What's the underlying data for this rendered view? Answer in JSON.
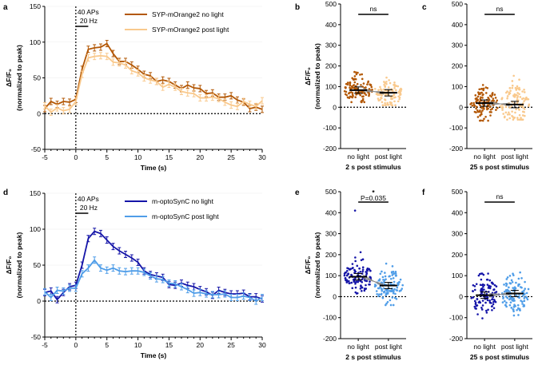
{
  "panel_labels": [
    "a",
    "b",
    "c",
    "d",
    "e",
    "f"
  ],
  "chart_data": [
    {
      "panel": "a",
      "type": "line",
      "xlabel": "Time (s)",
      "ylabel_line1": "ΔF/F₀",
      "ylabel_line2": "(normalized to peak)",
      "xlim": [
        -5,
        30
      ],
      "ylim": [
        -50,
        150
      ],
      "xticks": [
        -5,
        0,
        5,
        10,
        15,
        20,
        25,
        30
      ],
      "yticks": [
        -50,
        0,
        50,
        100,
        150
      ],
      "annotation_line1": "40 APs",
      "annotation_line2": "20 Hz",
      "x": [
        -5,
        -4,
        -3,
        -2,
        -1,
        0,
        1,
        2,
        3,
        4,
        5,
        6,
        7,
        8,
        9,
        10,
        11,
        12,
        13,
        14,
        15,
        16,
        17,
        18,
        19,
        20,
        21,
        22,
        23,
        24,
        25,
        26,
        27,
        28,
        29,
        30
      ],
      "series": [
        {
          "name": "SYP-mOrange2 no light",
          "color": "#b35806",
          "values": [
            7,
            17,
            13,
            17,
            16,
            20,
            62,
            90,
            92,
            93,
            98,
            84,
            73,
            73,
            68,
            62,
            55,
            53,
            45,
            47,
            45,
            40,
            35,
            40,
            36,
            35,
            28,
            29,
            23,
            23,
            25,
            19,
            16,
            7,
            9,
            6
          ]
        },
        {
          "name": "SYP-mOrange2 post light",
          "color": "#f9c98d",
          "values": [
            11,
            2,
            8,
            4,
            6,
            17,
            55,
            78,
            80,
            81,
            80,
            72,
            71,
            68,
            60,
            57,
            50,
            47,
            45,
            37,
            41,
            37,
            31,
            29,
            28,
            22,
            22,
            23,
            21,
            16,
            12,
            10,
            17,
            13,
            10,
            18
          ]
        }
      ]
    },
    {
      "panel": "b",
      "type": "scatter",
      "ylabel_line1": "ΔF/F₀",
      "ylabel_line2": "(normalized to peak)",
      "xlabel": "2 s post stimulus",
      "categories": [
        "no light",
        "post light"
      ],
      "ylim": [
        -200,
        500
      ],
      "yticks": [
        -200,
        -100,
        0,
        100,
        200,
        300,
        400,
        500
      ],
      "colors": [
        "#b35806",
        "#f9c98d"
      ],
      "means": [
        83,
        70
      ],
      "spread": [
        [
          25,
          230
        ],
        [
          10,
          210
        ]
      ],
      "significance": "ns"
    },
    {
      "panel": "c",
      "type": "scatter",
      "ylabel_line1": "",
      "ylabel_line2": "",
      "xlabel": "25 s post stimulus",
      "categories": [
        "no light",
        "post light"
      ],
      "ylim": [
        -200,
        500
      ],
      "yticks": [
        -200,
        -100,
        0,
        100,
        200,
        300,
        400,
        500
      ],
      "colors": [
        "#b35806",
        "#f9c98d"
      ],
      "means": [
        20,
        13
      ],
      "spread": [
        [
          -65,
          155
        ],
        [
          -60,
          260
        ]
      ],
      "significance": "ns"
    },
    {
      "panel": "d",
      "type": "line",
      "xlabel": "Time (s)",
      "ylabel_line1": "ΔF/F₀",
      "ylabel_line2": "(normalized to peak)",
      "xlim": [
        -5,
        30
      ],
      "ylim": [
        -50,
        150
      ],
      "xticks": [
        -5,
        0,
        5,
        10,
        15,
        20,
        25,
        30
      ],
      "yticks": [
        -50,
        0,
        50,
        100,
        150
      ],
      "annotation_line1": "40 APs",
      "annotation_line2": "20 Hz",
      "x": [
        -5,
        -4,
        -3,
        -2,
        -1,
        0,
        1,
        2,
        3,
        4,
        5,
        6,
        7,
        8,
        9,
        10,
        11,
        12,
        13,
        14,
        15,
        16,
        17,
        18,
        19,
        20,
        21,
        22,
        23,
        24,
        25,
        26,
        27,
        28,
        29,
        30
      ],
      "series": [
        {
          "name": "m-optoSynC no light",
          "color": "#1515a8",
          "values": [
            12,
            14,
            2,
            12,
            20,
            22,
            50,
            87,
            97,
            94,
            85,
            76,
            70,
            65,
            60,
            54,
            42,
            37,
            35,
            33,
            23,
            22,
            25,
            22,
            20,
            16,
            13,
            8,
            15,
            12,
            10,
            10,
            11,
            6,
            6,
            3
          ]
        },
        {
          "name": "m-optoSynC post light",
          "color": "#4f9de8",
          "values": [
            13,
            5,
            15,
            14,
            18,
            18,
            38,
            46,
            57,
            46,
            43,
            46,
            42,
            41,
            42,
            42,
            40,
            35,
            31,
            30,
            25,
            24,
            20,
            16,
            11,
            12,
            10,
            9,
            9,
            10,
            5,
            5,
            7,
            5,
            0,
            5
          ]
        }
      ]
    },
    {
      "panel": "e",
      "type": "scatter",
      "ylabel_line1": "ΔF/F₀",
      "ylabel_line2": "(normalized to peak)",
      "xlabel": "2 s post stimulus",
      "categories": [
        "no light",
        "post light"
      ],
      "ylim": [
        -200,
        500
      ],
      "yticks": [
        -200,
        -100,
        0,
        100,
        200,
        300,
        400,
        500
      ],
      "colors": [
        "#1515a8",
        "#4f9de8"
      ],
      "means": [
        95,
        53
      ],
      "spread": [
        [
          15,
          240
        ],
        [
          -40,
          210
        ]
      ],
      "outlier": 410,
      "significance": "*",
      "pvalue": "P=0.035"
    },
    {
      "panel": "f",
      "type": "scatter",
      "ylabel_line1": "",
      "ylabel_line2": "",
      "xlabel": "25 s post stimulus",
      "categories": [
        "no light",
        "post light"
      ],
      "ylim": [
        -200,
        500
      ],
      "yticks": [
        -200,
        -100,
        0,
        100,
        200,
        300,
        400,
        500
      ],
      "colors": [
        "#1515a8",
        "#4f9de8"
      ],
      "means": [
        7,
        15
      ],
      "spread": [
        [
          -190,
          110
        ],
        [
          -110,
          180
        ]
      ],
      "significance": "ns"
    }
  ]
}
